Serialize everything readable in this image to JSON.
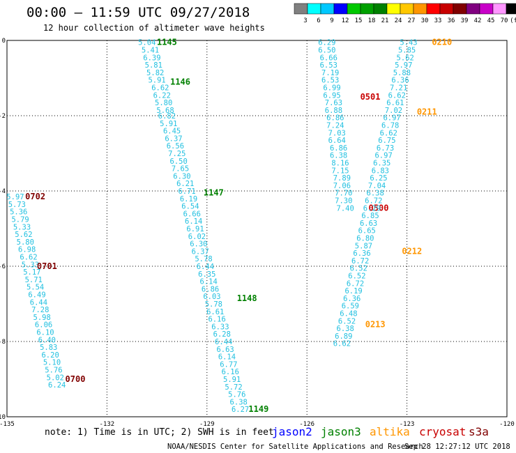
{
  "header": {
    "title": "00:00 – 11:59 UTC 09/27/2018",
    "subtitle": "12 hour collection of altimeter wave heights"
  },
  "colorbar": {
    "labels": [
      "3",
      "6",
      "9",
      "12",
      "15",
      "18",
      "21",
      "24",
      "27",
      "30",
      "33",
      "36",
      "39",
      "42",
      "45",
      "70",
      "(ft)"
    ],
    "colors": [
      "#808080",
      "#00ffff",
      "#00c8ff",
      "#0000ff",
      "#00c800",
      "#00a000",
      "#008000",
      "#ffff00",
      "#ffc800",
      "#ff9600",
      "#ff0000",
      "#c80000",
      "#800000",
      "#800080",
      "#c800c8",
      "#ff96ff",
      "#000000"
    ]
  },
  "note": "note: 1) Time is in UTC; 2) SWH is in feet",
  "legend": [
    {
      "name": "jason2",
      "color": "#0000ff"
    },
    {
      "name": "jason3",
      "color": "#008000"
    },
    {
      "name": "altika",
      "color": "#ff9600"
    },
    {
      "name": "cryosat",
      "color": "#c80000"
    },
    {
      "name": "s3a",
      "color": "#800000"
    }
  ],
  "footer": {
    "agency": "NOAA/NESDIS Center for Satellite Applications and Research",
    "timestamp": "Sep 28 12:27:12 UTC 2018"
  },
  "chart_data": {
    "type": "scatter",
    "xlim": [
      -135,
      -120
    ],
    "ylim": [
      -10,
      0
    ],
    "x_ticks": [
      "-135",
      "-132",
      "-129",
      "-126",
      "-123",
      "-120"
    ],
    "y_ticks": [
      "0",
      "-2",
      "-4",
      "-6",
      "-8",
      "-10"
    ],
    "grid": true,
    "series": [
      {
        "name": "jason3",
        "color": "#008000",
        "points": [
          {
            "x": -130.8,
            "y": -0.05,
            "v": "5.04"
          },
          {
            "x": -130.7,
            "y": -0.25,
            "v": "5.41"
          },
          {
            "x": -130.65,
            "y": -0.45,
            "v": "6.39"
          },
          {
            "x": -130.6,
            "y": -0.65,
            "v": "5.81"
          },
          {
            "x": -130.55,
            "y": -0.85,
            "v": "5.82"
          },
          {
            "x": -130.5,
            "y": -1.05,
            "v": "5.91"
          },
          {
            "x": -130.4,
            "y": -1.25,
            "v": "6.62"
          },
          {
            "x": -130.35,
            "y": -1.45,
            "v": "6.22"
          },
          {
            "x": -130.3,
            "y": -1.65,
            "v": "5.80"
          },
          {
            "x": -130.25,
            "y": -1.85,
            "v": "5.68"
          },
          {
            "x": -130.2,
            "y": -2.0,
            "v": "6.82"
          },
          {
            "x": -130.15,
            "y": -2.2,
            "v": "5.91"
          },
          {
            "x": -130.05,
            "y": -2.4,
            "v": "6.45"
          },
          {
            "x": -130.0,
            "y": -2.6,
            "v": "6.37"
          },
          {
            "x": -129.95,
            "y": -2.8,
            "v": "6.56"
          },
          {
            "x": -129.9,
            "y": -3.0,
            "v": "7.25"
          },
          {
            "x": -129.85,
            "y": -3.2,
            "v": "6.50"
          },
          {
            "x": -129.8,
            "y": -3.4,
            "v": "7.65"
          },
          {
            "x": -129.75,
            "y": -3.6,
            "v": "6.30"
          },
          {
            "x": -129.65,
            "y": -3.8,
            "v": "6.21"
          },
          {
            "x": -129.6,
            "y": -4.0,
            "v": "6.71"
          },
          {
            "x": -129.55,
            "y": -4.2,
            "v": "6.19"
          },
          {
            "x": -129.5,
            "y": -4.4,
            "v": "6.54"
          },
          {
            "x": -129.45,
            "y": -4.6,
            "v": "6.66"
          },
          {
            "x": -129.4,
            "y": -4.8,
            "v": "6.14"
          },
          {
            "x": -129.35,
            "y": -5.0,
            "v": "6.91"
          },
          {
            "x": -129.3,
            "y": -5.2,
            "v": "6.02"
          },
          {
            "x": -129.25,
            "y": -5.4,
            "v": "6.30"
          },
          {
            "x": -129.2,
            "y": -5.6,
            "v": "6.37"
          },
          {
            "x": -129.1,
            "y": -5.8,
            "v": "5.78"
          },
          {
            "x": -129.05,
            "y": -6.0,
            "v": "6.44"
          },
          {
            "x": -129.0,
            "y": -6.2,
            "v": "6.35"
          },
          {
            "x": -128.95,
            "y": -6.4,
            "v": "6.14"
          },
          {
            "x": -128.9,
            "y": -6.6,
            "v": "6.86"
          },
          {
            "x": -128.85,
            "y": -6.8,
            "v": "6.03"
          },
          {
            "x": -128.8,
            "y": -7.0,
            "v": "5.78"
          },
          {
            "x": -128.75,
            "y": -7.2,
            "v": "6.61"
          },
          {
            "x": -128.7,
            "y": -7.4,
            "v": "6.16"
          },
          {
            "x": -128.6,
            "y": -7.6,
            "v": "6.33"
          },
          {
            "x": -128.55,
            "y": -7.8,
            "v": "6.28"
          },
          {
            "x": -128.5,
            "y": -8.0,
            "v": "6.44"
          },
          {
            "x": -128.45,
            "y": -8.2,
            "v": "6.63"
          },
          {
            "x": -128.4,
            "y": -8.4,
            "v": "6.14"
          },
          {
            "x": -128.35,
            "y": -8.6,
            "v": "6.77"
          },
          {
            "x": -128.3,
            "y": -8.8,
            "v": "6.16"
          },
          {
            "x": -128.25,
            "y": -9.0,
            "v": "5.91"
          },
          {
            "x": -128.2,
            "y": -9.2,
            "v": "5.72"
          },
          {
            "x": -128.1,
            "y": -9.4,
            "v": "5.76"
          },
          {
            "x": -128.05,
            "y": -9.6,
            "v": "6.38"
          },
          {
            "x": -128.0,
            "y": -9.8,
            "v": "6.27"
          }
        ],
        "time_labels": [
          {
            "x": -130.2,
            "y": -0.05,
            "t": "1145"
          },
          {
            "x": -129.8,
            "y": -1.1,
            "t": "1146"
          },
          {
            "x": -128.8,
            "y": -4.05,
            "t": "1147"
          },
          {
            "x": -127.8,
            "y": -6.85,
            "t": "1148"
          },
          {
            "x": -127.45,
            "y": -9.8,
            "t": "1149"
          }
        ]
      },
      {
        "name": "s3a",
        "color": "#800000",
        "points": [
          {
            "x": -134.75,
            "y": -4.15,
            "v": "5.97"
          },
          {
            "x": -134.7,
            "y": -4.35,
            "v": "5.73"
          },
          {
            "x": -134.65,
            "y": -4.55,
            "v": "5.36"
          },
          {
            "x": -134.6,
            "y": -4.75,
            "v": "5.79"
          },
          {
            "x": -134.55,
            "y": -4.95,
            "v": "5.33"
          },
          {
            "x": -134.5,
            "y": -5.15,
            "v": "5.62"
          },
          {
            "x": -134.45,
            "y": -5.35,
            "v": "5.80"
          },
          {
            "x": -134.4,
            "y": -5.55,
            "v": "6.98"
          },
          {
            "x": -134.35,
            "y": -5.75,
            "v": "6.62"
          },
          {
            "x": -134.3,
            "y": -5.95,
            "v": "5.33"
          },
          {
            "x": -134.25,
            "y": -6.15,
            "v": "5.17"
          },
          {
            "x": -134.2,
            "y": -6.35,
            "v": "5.71"
          },
          {
            "x": -134.15,
            "y": -6.55,
            "v": "5.54"
          },
          {
            "x": -134.1,
            "y": -6.75,
            "v": "6.49"
          },
          {
            "x": -134.05,
            "y": -6.95,
            "v": "6.44"
          },
          {
            "x": -134.0,
            "y": -7.15,
            "v": "7.28"
          },
          {
            "x": -133.95,
            "y": -7.35,
            "v": "5.98"
          },
          {
            "x": -133.9,
            "y": -7.55,
            "v": "6.06"
          },
          {
            "x": -133.85,
            "y": -7.75,
            "v": "6.10"
          },
          {
            "x": -133.8,
            "y": -7.95,
            "v": "6.40"
          },
          {
            "x": -133.75,
            "y": -8.15,
            "v": "5.83"
          },
          {
            "x": -133.7,
            "y": -8.35,
            "v": "6.20"
          },
          {
            "x": -133.65,
            "y": -8.55,
            "v": "5.10"
          },
          {
            "x": -133.6,
            "y": -8.75,
            "v": "5.76"
          },
          {
            "x": -133.55,
            "y": -8.95,
            "v": "5.02"
          },
          {
            "x": -133.5,
            "y": -9.15,
            "v": "6.24"
          }
        ],
        "time_labels": [
          {
            "x": -134.15,
            "y": -4.15,
            "t": "0702"
          },
          {
            "x": -133.8,
            "y": -6.0,
            "t": "0701"
          },
          {
            "x": -132.95,
            "y": -9.0,
            "t": "0700"
          }
        ]
      },
      {
        "name": "cryosat",
        "color": "#c80000",
        "points": [
          {
            "x": -125.4,
            "y": -0.05,
            "v": "6.29"
          },
          {
            "x": -125.4,
            "y": -0.25,
            "v": "6.50"
          },
          {
            "x": -125.35,
            "y": -0.45,
            "v": "6.66"
          },
          {
            "x": -125.35,
            "y": -0.65,
            "v": "6.53"
          },
          {
            "x": -125.3,
            "y": -0.85,
            "v": "7.19"
          },
          {
            "x": -125.3,
            "y": -1.05,
            "v": "6.53"
          },
          {
            "x": -125.25,
            "y": -1.25,
            "v": "6.99"
          },
          {
            "x": -125.25,
            "y": -1.45,
            "v": "6.95"
          },
          {
            "x": -125.2,
            "y": -1.65,
            "v": "7.63"
          },
          {
            "x": -125.2,
            "y": -1.85,
            "v": "6.88"
          },
          {
            "x": -125.15,
            "y": -2.05,
            "v": "6.86"
          },
          {
            "x": -125.15,
            "y": -2.25,
            "v": "7.24"
          },
          {
            "x": -125.1,
            "y": -2.45,
            "v": "7.03"
          },
          {
            "x": -125.1,
            "y": -2.65,
            "v": "6.64"
          },
          {
            "x": -125.05,
            "y": -2.85,
            "v": "6.86"
          },
          {
            "x": -125.05,
            "y": -3.05,
            "v": "6.38"
          },
          {
            "x": -125.0,
            "y": -3.25,
            "v": "8.16"
          },
          {
            "x": -125.0,
            "y": -3.45,
            "v": "7.15"
          },
          {
            "x": -124.95,
            "y": -3.65,
            "v": "7.89"
          },
          {
            "x": -124.95,
            "y": -3.85,
            "v": "7.06"
          },
          {
            "x": -124.9,
            "y": -4.05,
            "v": "7.70"
          },
          {
            "x": -124.9,
            "y": -4.25,
            "v": "7.30"
          },
          {
            "x": -124.85,
            "y": -4.45,
            "v": "7.40"
          }
        ],
        "time_labels": [
          {
            "x": -124.1,
            "y": -1.5,
            "t": "0501"
          },
          {
            "x": -123.85,
            "y": -4.45,
            "t": "0500"
          }
        ]
      },
      {
        "name": "altika",
        "color": "#ff9600",
        "points": [
          {
            "x": -122.95,
            "y": -0.05,
            "v": "5.43"
          },
          {
            "x": -123.0,
            "y": -0.25,
            "v": "5.85"
          },
          {
            "x": -123.05,
            "y": -0.45,
            "v": "5.62"
          },
          {
            "x": -123.1,
            "y": -0.65,
            "v": "5.97"
          },
          {
            "x": -123.15,
            "y": -0.85,
            "v": "5.88"
          },
          {
            "x": -123.2,
            "y": -1.05,
            "v": "6.36"
          },
          {
            "x": -123.25,
            "y": -1.25,
            "v": "7.21"
          },
          {
            "x": -123.3,
            "y": -1.45,
            "v": "6.62"
          },
          {
            "x": -123.35,
            "y": -1.65,
            "v": "6.61"
          },
          {
            "x": -123.4,
            "y": -1.85,
            "v": "7.02"
          },
          {
            "x": -123.45,
            "y": -2.05,
            "v": "6.97"
          },
          {
            "x": -123.5,
            "y": -2.25,
            "v": "6.78"
          },
          {
            "x": -123.55,
            "y": -2.45,
            "v": "6.62"
          },
          {
            "x": -123.6,
            "y": -2.65,
            "v": "6.75"
          },
          {
            "x": -123.65,
            "y": -2.85,
            "v": "6.73"
          },
          {
            "x": -123.7,
            "y": -3.05,
            "v": "6.97"
          },
          {
            "x": -123.75,
            "y": -3.25,
            "v": "6.35"
          },
          {
            "x": -123.8,
            "y": -3.45,
            "v": "6.83"
          },
          {
            "x": -123.85,
            "y": -3.65,
            "v": "6.25"
          },
          {
            "x": -123.9,
            "y": -3.85,
            "v": "7.04"
          },
          {
            "x": -123.95,
            "y": -4.05,
            "v": "6.38"
          },
          {
            "x": -124.0,
            "y": -4.25,
            "v": "6.72"
          },
          {
            "x": -124.05,
            "y": -4.45,
            "v": "6.29"
          },
          {
            "x": -124.1,
            "y": -4.65,
            "v": "6.85"
          },
          {
            "x": -124.15,
            "y": -4.85,
            "v": "6.63"
          },
          {
            "x": -124.2,
            "y": -5.05,
            "v": "6.65"
          },
          {
            "x": -124.25,
            "y": -5.25,
            "v": "6.80"
          },
          {
            "x": -124.3,
            "y": -5.45,
            "v": "5.87"
          },
          {
            "x": -124.35,
            "y": -5.65,
            "v": "6.36"
          },
          {
            "x": -124.4,
            "y": -5.85,
            "v": "6.72"
          },
          {
            "x": -124.45,
            "y": -6.05,
            "v": "6.52"
          },
          {
            "x": -124.5,
            "y": -6.25,
            "v": "6.52"
          },
          {
            "x": -124.55,
            "y": -6.45,
            "v": "6.72"
          },
          {
            "x": -124.6,
            "y": -6.65,
            "v": "6.19"
          },
          {
            "x": -124.65,
            "y": -6.85,
            "v": "6.36"
          },
          {
            "x": -124.7,
            "y": -7.05,
            "v": "6.59"
          },
          {
            "x": -124.75,
            "y": -7.25,
            "v": "6.48"
          },
          {
            "x": -124.8,
            "y": -7.45,
            "v": "6.52"
          },
          {
            "x": -124.85,
            "y": -7.65,
            "v": "6.38"
          },
          {
            "x": -124.9,
            "y": -7.85,
            "v": "6.89"
          },
          {
            "x": -124.95,
            "y": -8.05,
            "v": "6.62"
          }
        ],
        "time_labels": [
          {
            "x": -121.95,
            "y": -0.05,
            "t": "0210"
          },
          {
            "x": -122.4,
            "y": -1.9,
            "t": "0211"
          },
          {
            "x": -122.85,
            "y": -5.6,
            "t": "0212"
          },
          {
            "x": -123.95,
            "y": -7.55,
            "t": "0213"
          }
        ]
      }
    ]
  }
}
